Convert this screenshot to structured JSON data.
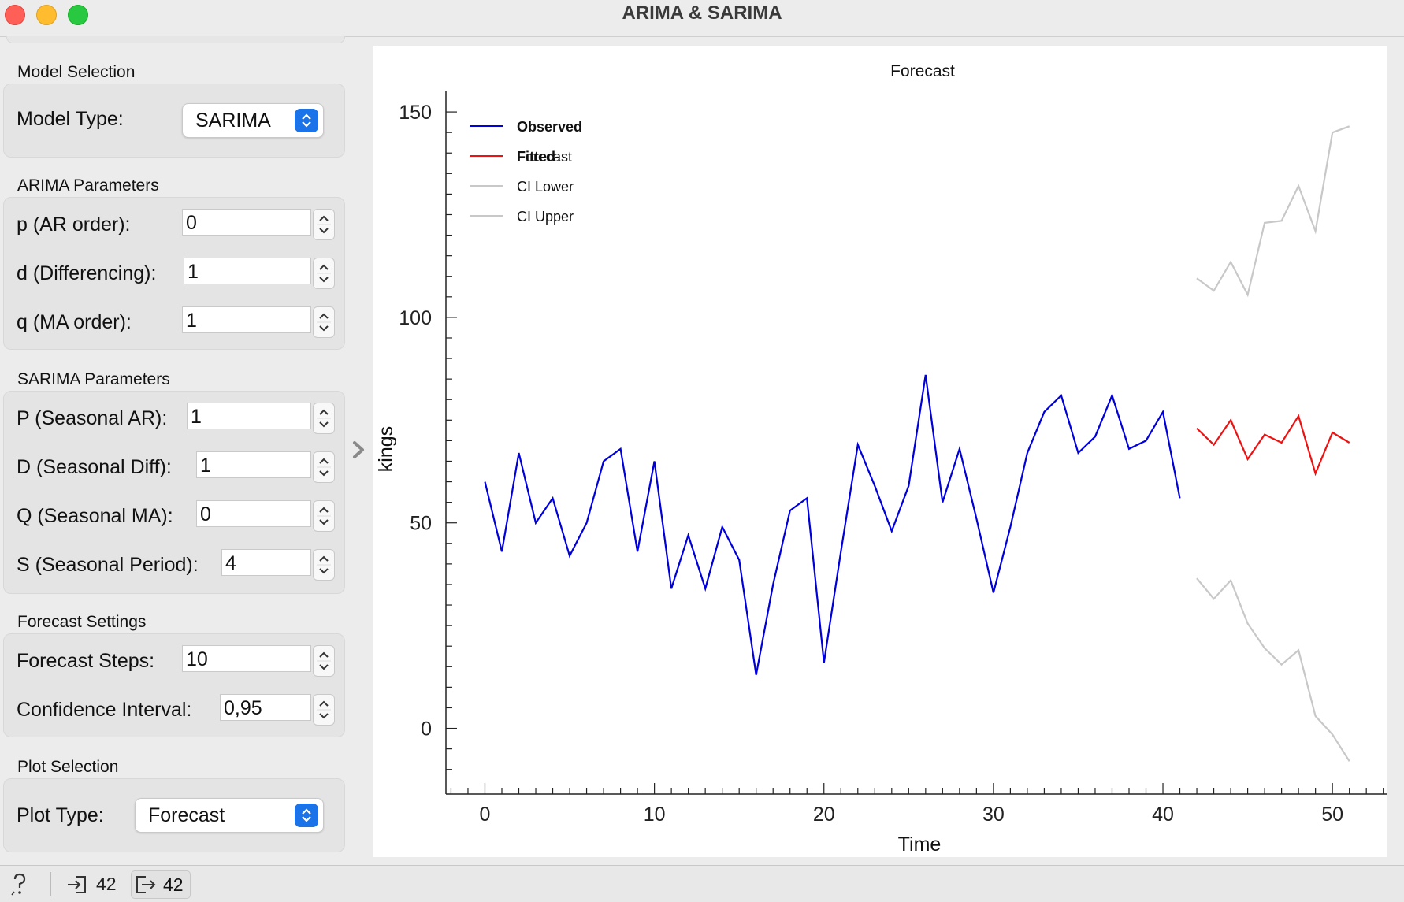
{
  "window": {
    "title": "ARIMA & SARIMA"
  },
  "model_selection": {
    "section": "Model Selection",
    "model_type_label": "Model Type:",
    "model_type_value": "SARIMA"
  },
  "arima": {
    "section": "ARIMA Parameters",
    "p_label": "p (AR order):",
    "p_value": "0",
    "d_label": "d (Differencing):",
    "d_value": "1",
    "q_label": "q (MA order):",
    "q_value": "1"
  },
  "sarima": {
    "section": "SARIMA Parameters",
    "P_label": "P (Seasonal AR):",
    "P_value": "1",
    "D_label": "D (Seasonal Diff):",
    "D_value": "1",
    "Q_label": "Q (Seasonal MA):",
    "Q_value": "0",
    "S_label": "S (Seasonal Period):",
    "S_value": "4"
  },
  "forecast": {
    "section": "Forecast Settings",
    "steps_label": "Forecast Steps:",
    "steps_value": "10",
    "ci_label": "Confidence Interval:",
    "ci_value": "0,95"
  },
  "plot_selection": {
    "section": "Plot Selection",
    "plot_type_label": "Plot Type:",
    "plot_type_value": "Forecast"
  },
  "statusbar": {
    "input_count": "42",
    "output_count": "42"
  },
  "colors": {
    "observed": "#0000dd",
    "forecast": "#ee1111",
    "ci": "#c8c8c8",
    "accent": "#1a73e8"
  },
  "chart_data": {
    "type": "line",
    "title": "Forecast",
    "xlabel": "Time",
    "ylabel": "kings",
    "xlim": [
      -2.3,
      53.2
    ],
    "ylim": [
      -16,
      155
    ],
    "xticks": [
      0,
      10,
      20,
      30,
      40,
      50
    ],
    "yticks": [
      0,
      50,
      100,
      150
    ],
    "legend_position": "top-left",
    "legend": [
      "Observed",
      "Fitted",
      "Forecast",
      "CI Lower",
      "CI Upper"
    ],
    "series": [
      {
        "name": "Observed",
        "x": [
          0,
          1,
          2,
          3,
          4,
          5,
          6,
          7,
          8,
          9,
          10,
          11,
          12,
          13,
          14,
          15,
          16,
          17,
          18,
          19,
          20,
          21,
          22,
          23,
          24,
          25,
          26,
          27,
          28,
          29,
          30,
          31,
          32,
          33,
          34,
          35,
          36,
          37,
          38,
          39,
          40,
          41
        ],
        "values": [
          60,
          43,
          67,
          50,
          56,
          42,
          50,
          65,
          68,
          43,
          65,
          34,
          47,
          34,
          49,
          41,
          13,
          35,
          53,
          56,
          16,
          43,
          69,
          59,
          48,
          59,
          86,
          55,
          68,
          51,
          33,
          49,
          67,
          77,
          81,
          67,
          71,
          81,
          68,
          70,
          77,
          56
        ]
      },
      {
        "name": "Fitted",
        "x": [],
        "values": []
      },
      {
        "name": "Forecast",
        "x": [
          42,
          43,
          44,
          45,
          46,
          47,
          48,
          49,
          50,
          51
        ],
        "values": [
          73.0,
          69.0,
          75.0,
          65.5,
          71.5,
          69.5,
          76.0,
          62.0,
          72.0,
          69.5
        ]
      },
      {
        "name": "CI Lower",
        "x": [
          42,
          43,
          44,
          45,
          46,
          47,
          48,
          49,
          50,
          51
        ],
        "values": [
          36.5,
          31.5,
          36.0,
          25.5,
          19.5,
          15.5,
          19.0,
          3.0,
          -1.5,
          -8.0
        ]
      },
      {
        "name": "CI Upper",
        "x": [
          42,
          43,
          44,
          45,
          46,
          47,
          48,
          49,
          50,
          51
        ],
        "values": [
          109.5,
          106.5,
          113.5,
          105.5,
          123.0,
          123.5,
          132.0,
          121.0,
          145.0,
          146.5
        ]
      }
    ]
  }
}
